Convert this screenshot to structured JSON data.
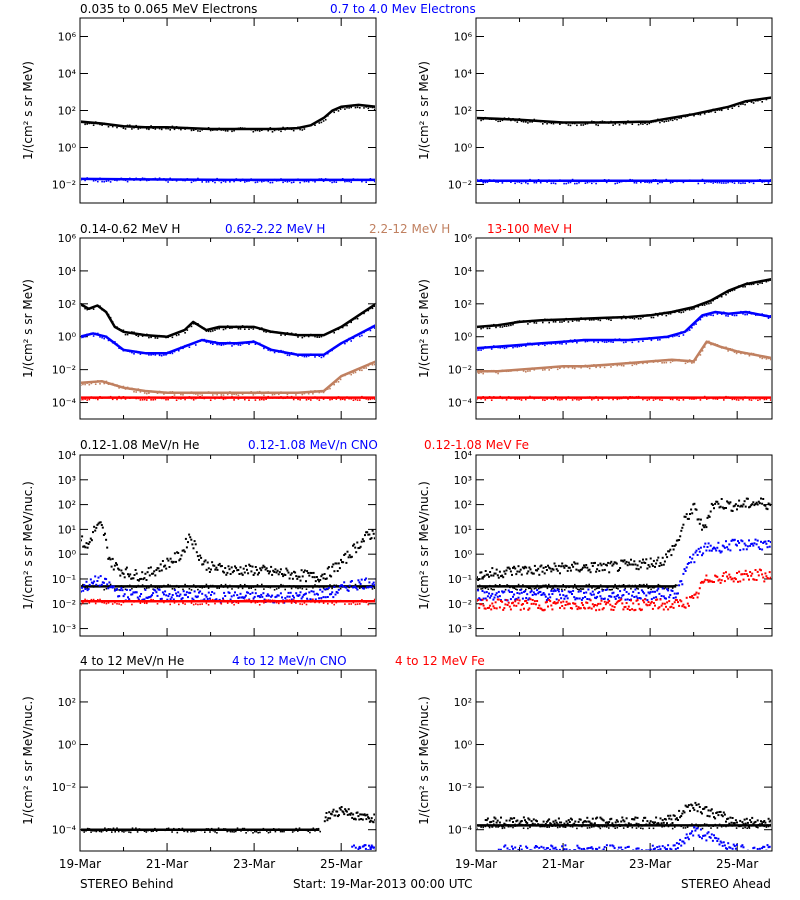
{
  "figure": {
    "footer": {
      "left": "STEREO Behind",
      "center": "Start: 19-Mar-2013 00:00 UTC",
      "right": "STEREO Ahead"
    },
    "x_ticks": [
      "19-Mar",
      "21-Mar",
      "23-Mar",
      "25-Mar"
    ],
    "palette": {
      "black": "#000000",
      "blue": "#0000ff",
      "tan": "#c08060",
      "red": "#ff0000"
    }
  },
  "chart_data": [
    {
      "type": "scatter",
      "row": 1,
      "ylabel": "1/(cm² s sr MeV)",
      "yscale": "log",
      "ylim_exp": [
        -3,
        7
      ],
      "y_ticks": [
        "10⁻²",
        "10⁰",
        "10²",
        "10⁴",
        "10⁶"
      ],
      "xlim_days": [
        0,
        6.8
      ],
      "legend": [
        {
          "text": "0.035 to 0.065 MeV Electrons",
          "color": "black"
        },
        {
          "text": "0.7 to 4.0 Mev Electrons",
          "color": "blue"
        }
      ],
      "panels": [
        {
          "id": "behind",
          "series": [
            {
              "color": "black",
              "mode": "line",
              "x": [
                0,
                0.5,
                1,
                1.5,
                2,
                2.5,
                3,
                3.5,
                4,
                4.5,
                5,
                5.3,
                5.6,
                5.8,
                6,
                6.4,
                6.8
              ],
              "y": [
                1.4,
                1.3,
                1.15,
                1.1,
                1.1,
                1.05,
                1.0,
                1.0,
                1.0,
                1.0,
                1.05,
                1.2,
                1.6,
                2.0,
                2.2,
                2.3,
                2.2
              ]
            },
            {
              "color": "blue",
              "mode": "line",
              "x": [
                0,
                3.4,
                6.8
              ],
              "y": [
                -1.7,
                -1.75,
                -1.75
              ]
            }
          ]
        },
        {
          "id": "ahead",
          "series": [
            {
              "color": "black",
              "mode": "line",
              "x": [
                0,
                0.5,
                1,
                2,
                3,
                4,
                4.5,
                5,
                5.4,
                5.8,
                6.2,
                6.8
              ],
              "y": [
                1.6,
                1.55,
                1.5,
                1.35,
                1.35,
                1.4,
                1.6,
                1.8,
                2.0,
                2.2,
                2.5,
                2.7
              ]
            },
            {
              "color": "blue",
              "mode": "line",
              "x": [
                0,
                3.4,
                6.8
              ],
              "y": [
                -1.8,
                -1.8,
                -1.8
              ]
            }
          ]
        }
      ]
    },
    {
      "type": "scatter",
      "row": 2,
      "ylabel": "1/(cm² s sr MeV)",
      "yscale": "log",
      "ylim_exp": [
        -5,
        6
      ],
      "y_ticks": [
        "10⁻⁴",
        "10⁻²",
        "10⁰",
        "10²",
        "10⁴",
        "10⁶"
      ],
      "xlim_days": [
        0,
        6.8
      ],
      "legend": [
        {
          "text": "0.14-0.62 MeV H",
          "color": "black"
        },
        {
          "text": "0.62-2.22 MeV H",
          "color": "blue"
        },
        {
          "text": "2.2-12 MeV H",
          "color": "tan"
        },
        {
          "text": "13-100 MeV H",
          "color": "red"
        }
      ],
      "panels": [
        {
          "id": "behind",
          "series": [
            {
              "color": "black",
              "mode": "line",
              "x": [
                0,
                0.2,
                0.4,
                0.6,
                0.8,
                1.0,
                1.5,
                2.0,
                2.4,
                2.6,
                2.9,
                3.2,
                3.6,
                4.0,
                4.4,
                5.0,
                5.6,
                6.0,
                6.8
              ],
              "y": [
                2.0,
                1.7,
                1.9,
                1.5,
                0.6,
                0.3,
                0.1,
                0.0,
                0.4,
                0.9,
                0.4,
                0.6,
                0.6,
                0.6,
                0.3,
                0.1,
                0.1,
                0.6,
                2.0
              ]
            },
            {
              "color": "blue",
              "mode": "line",
              "x": [
                0,
                0.3,
                0.6,
                1.0,
                1.5,
                2.0,
                2.4,
                2.8,
                3.2,
                3.6,
                4.0,
                4.4,
                5.0,
                5.6,
                6.0,
                6.8
              ],
              "y": [
                0.0,
                0.2,
                0.0,
                -0.8,
                -1.0,
                -1.0,
                -0.6,
                -0.2,
                -0.4,
                -0.4,
                -0.3,
                -0.8,
                -1.1,
                -1.1,
                -0.4,
                0.7
              ]
            },
            {
              "color": "tan",
              "mode": "line",
              "x": [
                0,
                0.5,
                1.0,
                1.5,
                2.0,
                3.0,
                4.0,
                5.0,
                5.6,
                6.0,
                6.8
              ],
              "y": [
                -2.8,
                -2.7,
                -3.1,
                -3.3,
                -3.4,
                -3.4,
                -3.4,
                -3.4,
                -3.3,
                -2.4,
                -1.5
              ]
            },
            {
              "color": "red",
              "mode": "line",
              "x": [
                0,
                3.4,
                6.8
              ],
              "y": [
                -3.7,
                -3.7,
                -3.7
              ]
            }
          ]
        },
        {
          "id": "ahead",
          "series": [
            {
              "color": "black",
              "mode": "line",
              "x": [
                0,
                0.5,
                1.0,
                1.5,
                2.0,
                2.5,
                3.0,
                3.5,
                4.0,
                4.5,
                5.0,
                5.4,
                5.8,
                6.2,
                6.8
              ],
              "y": [
                0.6,
                0.7,
                0.9,
                1.0,
                1.05,
                1.1,
                1.15,
                1.2,
                1.3,
                1.5,
                1.8,
                2.2,
                2.8,
                3.2,
                3.5
              ]
            },
            {
              "color": "blue",
              "mode": "line",
              "x": [
                0,
                0.5,
                1.0,
                1.5,
                2.0,
                2.5,
                3.0,
                3.5,
                4.0,
                4.4,
                4.8,
                5.2,
                5.5,
                5.8,
                6.2,
                6.8
              ],
              "y": [
                -0.7,
                -0.6,
                -0.5,
                -0.4,
                -0.3,
                -0.2,
                -0.2,
                -0.2,
                -0.1,
                0.0,
                0.3,
                1.3,
                1.5,
                1.4,
                1.5,
                1.2
              ]
            },
            {
              "color": "tan",
              "mode": "line",
              "x": [
                0,
                0.5,
                1.0,
                1.5,
                2.0,
                2.5,
                3.0,
                3.5,
                4.0,
                4.5,
                5.0,
                5.3,
                5.6,
                6.0,
                6.4,
                6.8
              ],
              "y": [
                -2.1,
                -2.1,
                -2.0,
                -1.9,
                -1.8,
                -1.8,
                -1.7,
                -1.6,
                -1.5,
                -1.4,
                -1.5,
                -0.3,
                -0.6,
                -0.9,
                -1.1,
                -1.3
              ]
            },
            {
              "color": "red",
              "mode": "line",
              "x": [
                0,
                3.4,
                6.8
              ],
              "y": [
                -3.7,
                -3.7,
                -3.7
              ]
            }
          ]
        }
      ]
    },
    {
      "type": "scatter",
      "row": 3,
      "ylabel": "1/(cm² s sr MeV/nuc.)",
      "yscale": "log",
      "ylim_exp": [
        -3.3,
        4
      ],
      "y_ticks": [
        "10⁻³",
        "10⁻²",
        "10⁻¹",
        "10⁰",
        "10¹",
        "10²",
        "10³",
        "10⁴"
      ],
      "xlim_days": [
        0,
        6.8
      ],
      "legend": [
        {
          "text": "0.12-1.08 MeV/n He",
          "color": "black"
        },
        {
          "text": "0.12-1.08 MeV/n CNO",
          "color": "blue"
        },
        {
          "text": "0.12-1.08 MeV Fe",
          "color": "red"
        }
      ],
      "panels": [
        {
          "id": "behind",
          "series": [
            {
              "color": "black",
              "mode": "dots",
              "x": [
                0,
                0.15,
                0.3,
                0.45,
                0.55,
                0.6,
                0.7,
                0.9,
                1.2,
                1.5,
                1.8,
                2.0,
                2.3,
                2.5,
                2.8,
                3.0,
                3.5,
                4.0,
                4.5,
                5.0,
                5.4,
                5.7,
                6.0,
                6.3,
                6.6,
                6.8
              ],
              "y": [
                0.6,
                0.3,
                1.0,
                1.2,
                0.8,
                0.2,
                -0.3,
                -0.6,
                -0.8,
                -0.8,
                -0.5,
                -0.3,
                0.0,
                0.8,
                -0.3,
                -0.5,
                -0.6,
                -0.6,
                -0.7,
                -0.8,
                -0.9,
                -0.7,
                -0.3,
                0.3,
                0.8,
                0.9
              ]
            },
            {
              "color": "black",
              "mode": "line",
              "x": [
                0,
                6.8
              ],
              "y": [
                -1.3,
                -1.3
              ]
            },
            {
              "color": "blue",
              "mode": "dots",
              "x": [
                0,
                0.2,
                0.4,
                0.6,
                1.0,
                2.0,
                3.0,
                4.0,
                5.0,
                5.8,
                6.2,
                6.6,
                6.8
              ],
              "y": [
                -1.3,
                -1.2,
                -1.0,
                -1.2,
                -1.6,
                -1.6,
                -1.7,
                -1.7,
                -1.7,
                -1.5,
                -1.2,
                -1.1,
                -1.1
              ]
            },
            {
              "color": "red",
              "mode": "line",
              "x": [
                0,
                6.8
              ],
              "y": [
                -1.9,
                -1.9
              ]
            }
          ]
        },
        {
          "id": "ahead",
          "series": [
            {
              "color": "black",
              "mode": "dots",
              "x": [
                0,
                0.5,
                1.0,
                1.5,
                2.0,
                2.5,
                3.0,
                3.5,
                4.0,
                4.3,
                4.6,
                4.8,
                5.0,
                5.2,
                5.4,
                5.6,
                5.8,
                6.0,
                6.3,
                6.6,
                6.8
              ],
              "y": [
                -0.8,
                -0.7,
                -0.6,
                -0.6,
                -0.5,
                -0.5,
                -0.5,
                -0.4,
                -0.3,
                -0.2,
                0.5,
                1.5,
                1.9,
                1.0,
                2.0,
                2.1,
                2.0,
                2.0,
                2.1,
                2.1,
                2.0
              ]
            },
            {
              "color": "black",
              "mode": "line",
              "x": [
                0,
                4.6
              ],
              "y": [
                -1.3,
                -1.3
              ]
            },
            {
              "color": "blue",
              "mode": "dots",
              "x": [
                0,
                1.0,
                2.0,
                3.0,
                4.0,
                4.6,
                4.9,
                5.1,
                5.3,
                5.5,
                5.8,
                6.1,
                6.4,
                6.8
              ],
              "y": [
                -1.6,
                -1.6,
                -1.6,
                -1.6,
                -1.6,
                -1.5,
                -0.2,
                0.1,
                0.3,
                0.3,
                0.4,
                0.4,
                0.5,
                0.3
              ]
            },
            {
              "color": "red",
              "mode": "dots",
              "x": [
                0,
                1.0,
                2.0,
                3.0,
                4.0,
                4.6,
                5.0,
                5.2,
                5.4,
                5.6,
                5.9,
                6.2,
                6.5,
                6.8
              ],
              "y": [
                -2.0,
                -2.0,
                -2.0,
                -2.0,
                -2.0,
                -2.0,
                -1.8,
                -1.1,
                -0.9,
                -0.9,
                -0.9,
                -0.8,
                -0.8,
                -0.9
              ]
            }
          ]
        }
      ]
    },
    {
      "type": "scatter",
      "row": 4,
      "ylabel": "1/(cm² s sr MeV/nuc.)",
      "yscale": "log",
      "ylim_exp": [
        -5,
        3.5
      ],
      "y_ticks": [
        "10⁻⁴",
        "10⁻²",
        "10⁰",
        "10²"
      ],
      "xlim_days": [
        0,
        6.8
      ],
      "legend": [
        {
          "text": "4 to 12 MeV/n He",
          "color": "black"
        },
        {
          "text": "4 to 12 MeV/n CNO",
          "color": "blue"
        },
        {
          "text": "4 to 12 MeV Fe",
          "color": "red"
        }
      ],
      "panels": [
        {
          "id": "behind",
          "series": [
            {
              "color": "black",
              "mode": "line",
              "x": [
                0,
                5.5
              ],
              "y": [
                -4.0,
                -4.0
              ]
            },
            {
              "color": "black",
              "mode": "dots",
              "x": [
                5.6,
                5.8,
                6.0,
                6.2,
                6.4,
                6.6,
                6.8
              ],
              "y": [
                -3.4,
                -3.2,
                -3.0,
                -3.2,
                -3.4,
                -3.4,
                -3.4
              ]
            },
            {
              "color": "blue",
              "mode": "dots",
              "x": [
                6.2,
                6.4,
                6.6,
                6.8
              ],
              "y": [
                -4.9,
                -4.9,
                -4.9,
                -4.9
              ]
            }
          ]
        },
        {
          "id": "ahead",
          "series": [
            {
              "color": "black",
              "mode": "line",
              "x": [
                0,
                6.8
              ],
              "y": [
                -3.8,
                -3.8
              ]
            },
            {
              "color": "black",
              "mode": "dots",
              "x": [
                0.2,
                1.0,
                2.0,
                3.0,
                4.0,
                4.6,
                4.8,
                5.0,
                5.2,
                5.4,
                5.6,
                5.8,
                6.0,
                6.4,
                6.8
              ],
              "y": [
                -3.6,
                -3.6,
                -3.6,
                -3.6,
                -3.6,
                -3.4,
                -2.9,
                -2.8,
                -3.0,
                -3.2,
                -3.3,
                -3.5,
                -3.6,
                -3.6,
                -3.6
              ]
            },
            {
              "color": "blue",
              "mode": "dots",
              "x": [
                0.5,
                1.5,
                2.5,
                3.5,
                4.5,
                5.0,
                6.0,
                6.8
              ],
              "y": [
                -4.9,
                -4.9,
                -4.9,
                -4.9,
                -4.9,
                -4.0,
                -4.9,
                -4.9
              ]
            }
          ]
        }
      ]
    }
  ]
}
